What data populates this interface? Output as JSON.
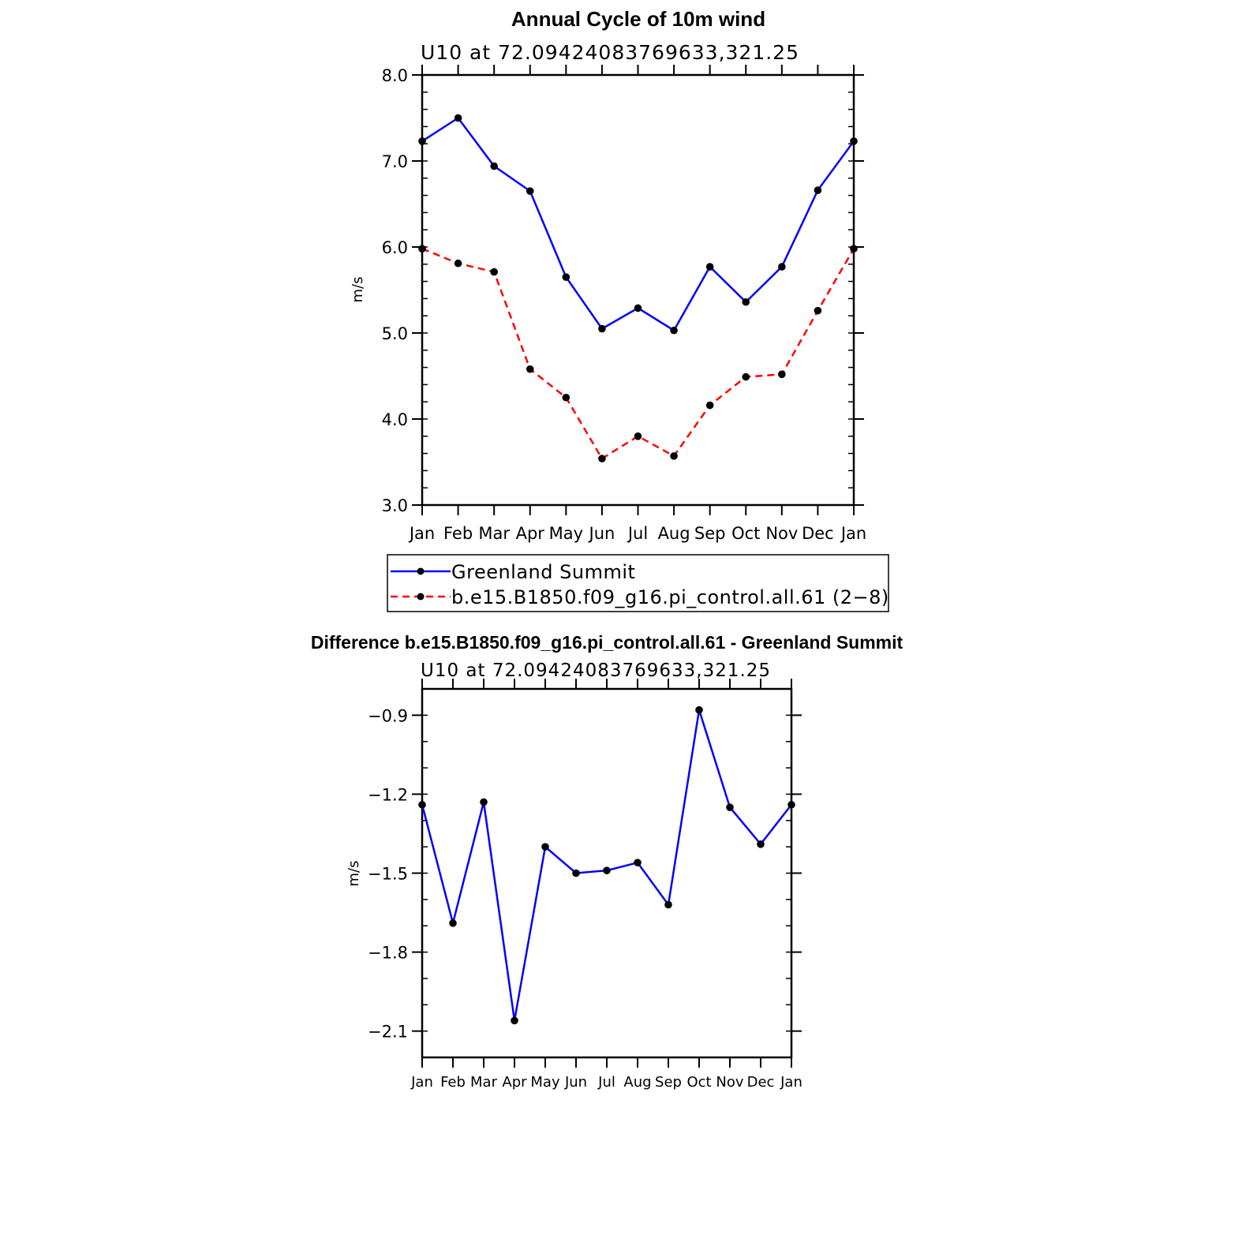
{
  "chart_data": [
    {
      "type": "line",
      "title": "Annual Cycle of 10m wind",
      "subtitle": "U10  at  72.09424083769633,321.25",
      "ylabel": "m/s",
      "categories": [
        "Jan",
        "Feb",
        "Mar",
        "Apr",
        "May",
        "Jun",
        "Jul",
        "Aug",
        "Sep",
        "Oct",
        "Nov",
        "Dec",
        "Jan"
      ],
      "ylim": [
        3.0,
        8.0
      ],
      "yticks": [
        "3.0",
        "4.0",
        "5.0",
        "6.0",
        "7.0",
        "8.0"
      ],
      "series": [
        {
          "name": "Greenland Summit",
          "color": "#0000ff",
          "dashed": false,
          "values": [
            7.23,
            7.5,
            6.94,
            6.65,
            5.65,
            5.05,
            5.29,
            5.03,
            5.77,
            5.36,
            5.77,
            6.66,
            7.23
          ]
        },
        {
          "name": "b.e15.B1850.f09_g16.pi_control.all.61 (2−8)",
          "color": "#ff0000",
          "dashed": true,
          "values": [
            5.98,
            5.81,
            5.71,
            4.58,
            4.25,
            3.54,
            3.8,
            3.57,
            4.16,
            4.49,
            4.52,
            5.26,
            5.98
          ]
        }
      ]
    },
    {
      "type": "line",
      "title": "Difference b.e15.B1850.f09_g16.pi_control.all.61 - Greenland Summit",
      "subtitle": "U10  at  72.09424083769633,321.25",
      "ylabel": "m/s",
      "categories": [
        "Jan",
        "Feb",
        "Mar",
        "Apr",
        "May",
        "Jun",
        "Jul",
        "Aug",
        "Sep",
        "Oct",
        "Nov",
        "Dec",
        "Jan"
      ],
      "ylim": [
        -2.2,
        -0.8
      ],
      "yticks": [
        "−2.1",
        "−1.8",
        "−1.5",
        "−1.2",
        "−0.9"
      ],
      "ytick_values": [
        -2.1,
        -1.8,
        -1.5,
        -1.2,
        -0.9
      ],
      "series": [
        {
          "name": "Difference",
          "color": "#0000ff",
          "dashed": false,
          "values": [
            -1.24,
            -1.69,
            -1.23,
            -2.06,
            -1.4,
            -1.5,
            -1.49,
            -1.46,
            -1.62,
            -0.88,
            -1.25,
            -1.39,
            -1.24
          ]
        }
      ]
    }
  ]
}
